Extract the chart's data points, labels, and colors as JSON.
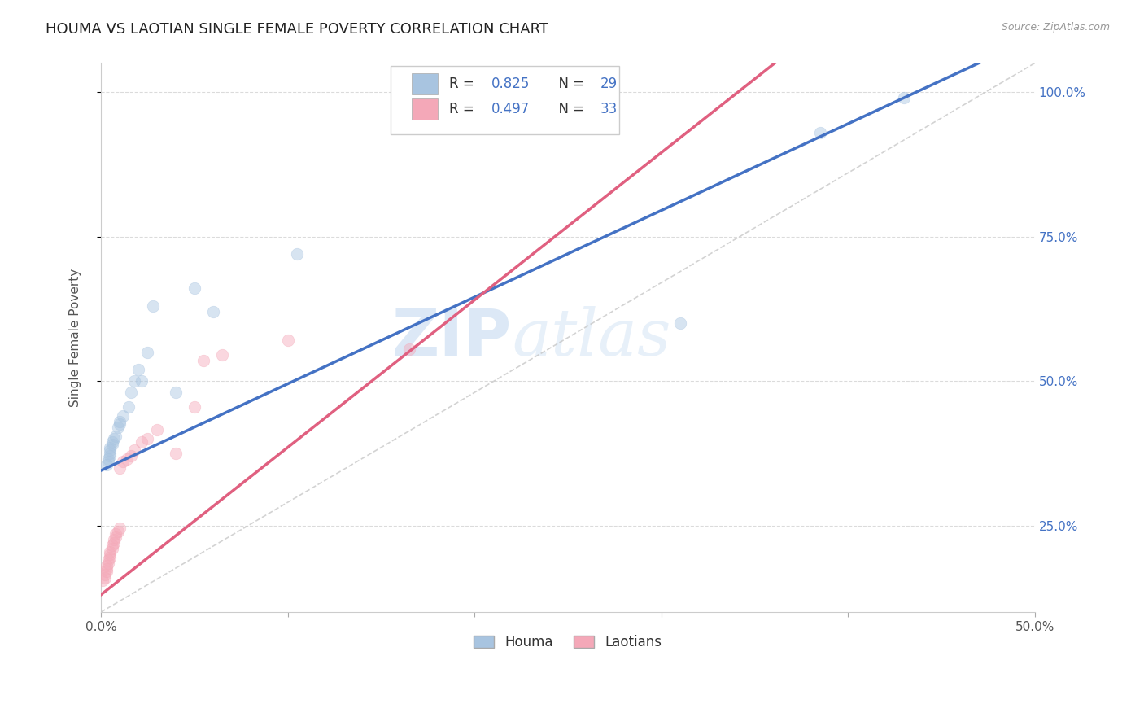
{
  "title": "HOUMA VS LAOTIAN SINGLE FEMALE POVERTY CORRELATION CHART",
  "source_text": "Source: ZipAtlas.com",
  "ylabel": "Single Female Poverty",
  "xlim": [
    0.0,
    0.5
  ],
  "ylim": [
    0.1,
    1.05
  ],
  "xticks": [
    0.0,
    0.1,
    0.2,
    0.3,
    0.4,
    0.5
  ],
  "xticklabels": [
    "0.0%",
    "",
    "",
    "",
    "",
    "50.0%"
  ],
  "yticks_right": [
    0.25,
    0.5,
    0.75,
    1.0
  ],
  "ytick_labels_right": [
    "25.0%",
    "50.0%",
    "75.0%",
    "100.0%"
  ],
  "houma_color": "#a8c4e0",
  "laotian_color": "#f4a8b8",
  "houma_line_color": "#4472c4",
  "laotian_line_color": "#e06080",
  "ref_line_color": "#c8c8c8",
  "legend_R1": "0.825",
  "legend_N1": "29",
  "legend_R2": "0.497",
  "legend_N2": "33",
  "legend_label1": "Houma",
  "legend_label2": "Laotians",
  "watermark_zip": "ZIP",
  "watermark_atlas": "atlas",
  "houma_x": [
    0.003,
    0.004,
    0.004,
    0.005,
    0.005,
    0.005,
    0.005,
    0.006,
    0.006,
    0.007,
    0.008,
    0.009,
    0.01,
    0.01,
    0.012,
    0.015,
    0.016,
    0.018,
    0.02,
    0.022,
    0.025,
    0.028,
    0.04,
    0.05,
    0.06,
    0.105,
    0.31,
    0.385,
    0.43
  ],
  "houma_y": [
    0.355,
    0.36,
    0.365,
    0.37,
    0.375,
    0.38,
    0.385,
    0.39,
    0.395,
    0.4,
    0.405,
    0.42,
    0.425,
    0.43,
    0.44,
    0.455,
    0.48,
    0.5,
    0.52,
    0.5,
    0.55,
    0.63,
    0.48,
    0.66,
    0.62,
    0.72,
    0.6,
    0.93,
    0.99
  ],
  "laotian_x": [
    0.001,
    0.002,
    0.002,
    0.003,
    0.003,
    0.003,
    0.004,
    0.004,
    0.005,
    0.005,
    0.005,
    0.006,
    0.006,
    0.007,
    0.007,
    0.008,
    0.008,
    0.009,
    0.01,
    0.01,
    0.012,
    0.014,
    0.016,
    0.018,
    0.022,
    0.025,
    0.03,
    0.04,
    0.05,
    0.055,
    0.065,
    0.1,
    0.165
  ],
  "laotian_y": [
    0.155,
    0.16,
    0.165,
    0.17,
    0.175,
    0.18,
    0.185,
    0.19,
    0.195,
    0.2,
    0.205,
    0.21,
    0.215,
    0.22,
    0.225,
    0.23,
    0.235,
    0.24,
    0.245,
    0.35,
    0.36,
    0.365,
    0.37,
    0.38,
    0.395,
    0.4,
    0.415,
    0.375,
    0.455,
    0.535,
    0.545,
    0.57,
    0.555
  ],
  "background_color": "#ffffff",
  "grid_color": "#d8d8d8",
  "title_color": "#222222",
  "marker_size": 110,
  "marker_alpha": 0.45,
  "houma_line_intercept": 0.345,
  "houma_line_slope": 1.5,
  "laotian_line_intercept": 0.13,
  "laotian_line_slope": 2.55
}
